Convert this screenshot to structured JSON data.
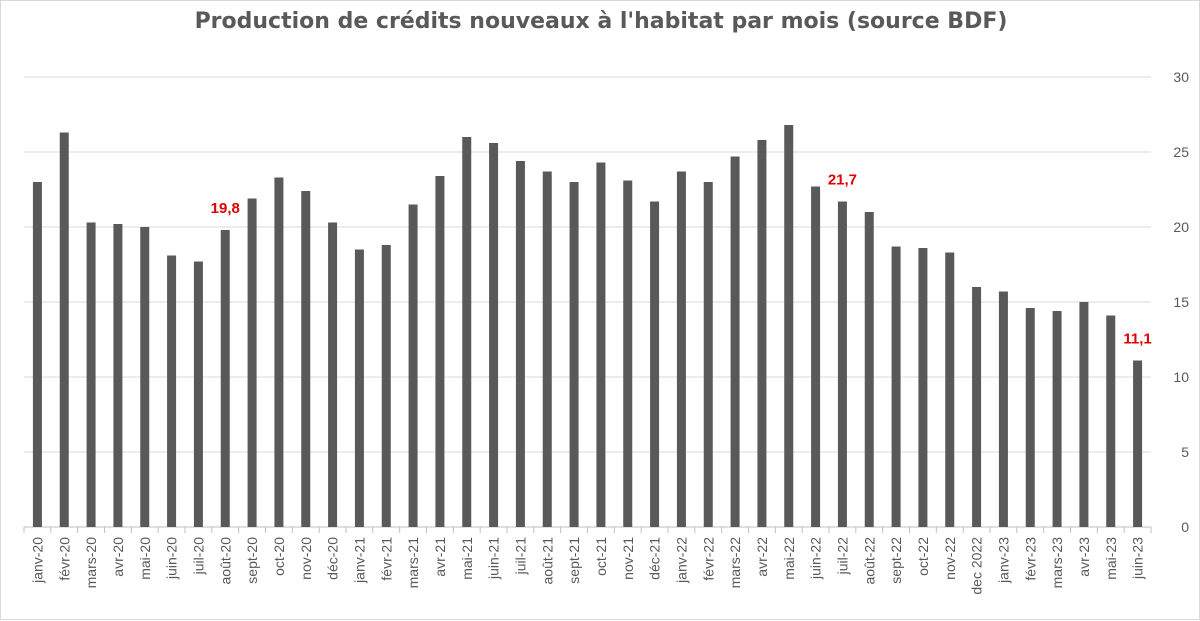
{
  "chart_data": {
    "type": "bar",
    "title": "Production de crédits nouveaux à l'habitat par mois (source BDF)",
    "xlabel": "",
    "ylabel": "",
    "ylim": [
      0,
      30
    ],
    "yticks": [
      0,
      5,
      10,
      15,
      20,
      25,
      30
    ],
    "y_axis_position": "right",
    "grid": true,
    "legend": "none",
    "categories": [
      "janv-20",
      "févr-20",
      "mars-20",
      "avr-20",
      "mai-20",
      "juin-20",
      "juil-20",
      "août-20",
      "sept-20",
      "oct-20",
      "nov-20",
      "déc-20",
      "janv-21",
      "févr-21",
      "mars-21",
      "avr-21",
      "mai-21",
      "juin-21",
      "juil-21",
      "août-21",
      "sept-21",
      "oct-21",
      "nov-21",
      "déc-21",
      "janv-22",
      "févr-22",
      "mars-22",
      "avr-22",
      "mai-22",
      "juin-22",
      "juil-22",
      "août-22",
      "sept-22",
      "oct-22",
      "nov-22",
      "dec 2022",
      "janv-23",
      "févr-23",
      "mars-23",
      "avr-23",
      "mai-23",
      "juin-23"
    ],
    "values": [
      23.0,
      26.3,
      20.3,
      20.2,
      20.0,
      18.1,
      17.7,
      19.8,
      21.9,
      23.3,
      22.4,
      20.3,
      18.5,
      18.8,
      21.5,
      23.4,
      26.0,
      25.6,
      24.4,
      23.7,
      23.0,
      24.3,
      23.1,
      21.7,
      23.7,
      23.0,
      24.7,
      25.8,
      26.8,
      22.7,
      21.7,
      21.0,
      18.7,
      18.6,
      18.3,
      16.0,
      15.7,
      14.6,
      14.4,
      15.0,
      14.1,
      11.1
    ],
    "annotations": [
      {
        "index": 7,
        "text": "19,8"
      },
      {
        "index": 30,
        "text": "21,7"
      },
      {
        "index": 41,
        "text": "11,1"
      }
    ],
    "colors": {
      "bar": "#595959",
      "annotation": "#e00000",
      "grid": "#d9d9d9",
      "text": "#595959"
    }
  }
}
